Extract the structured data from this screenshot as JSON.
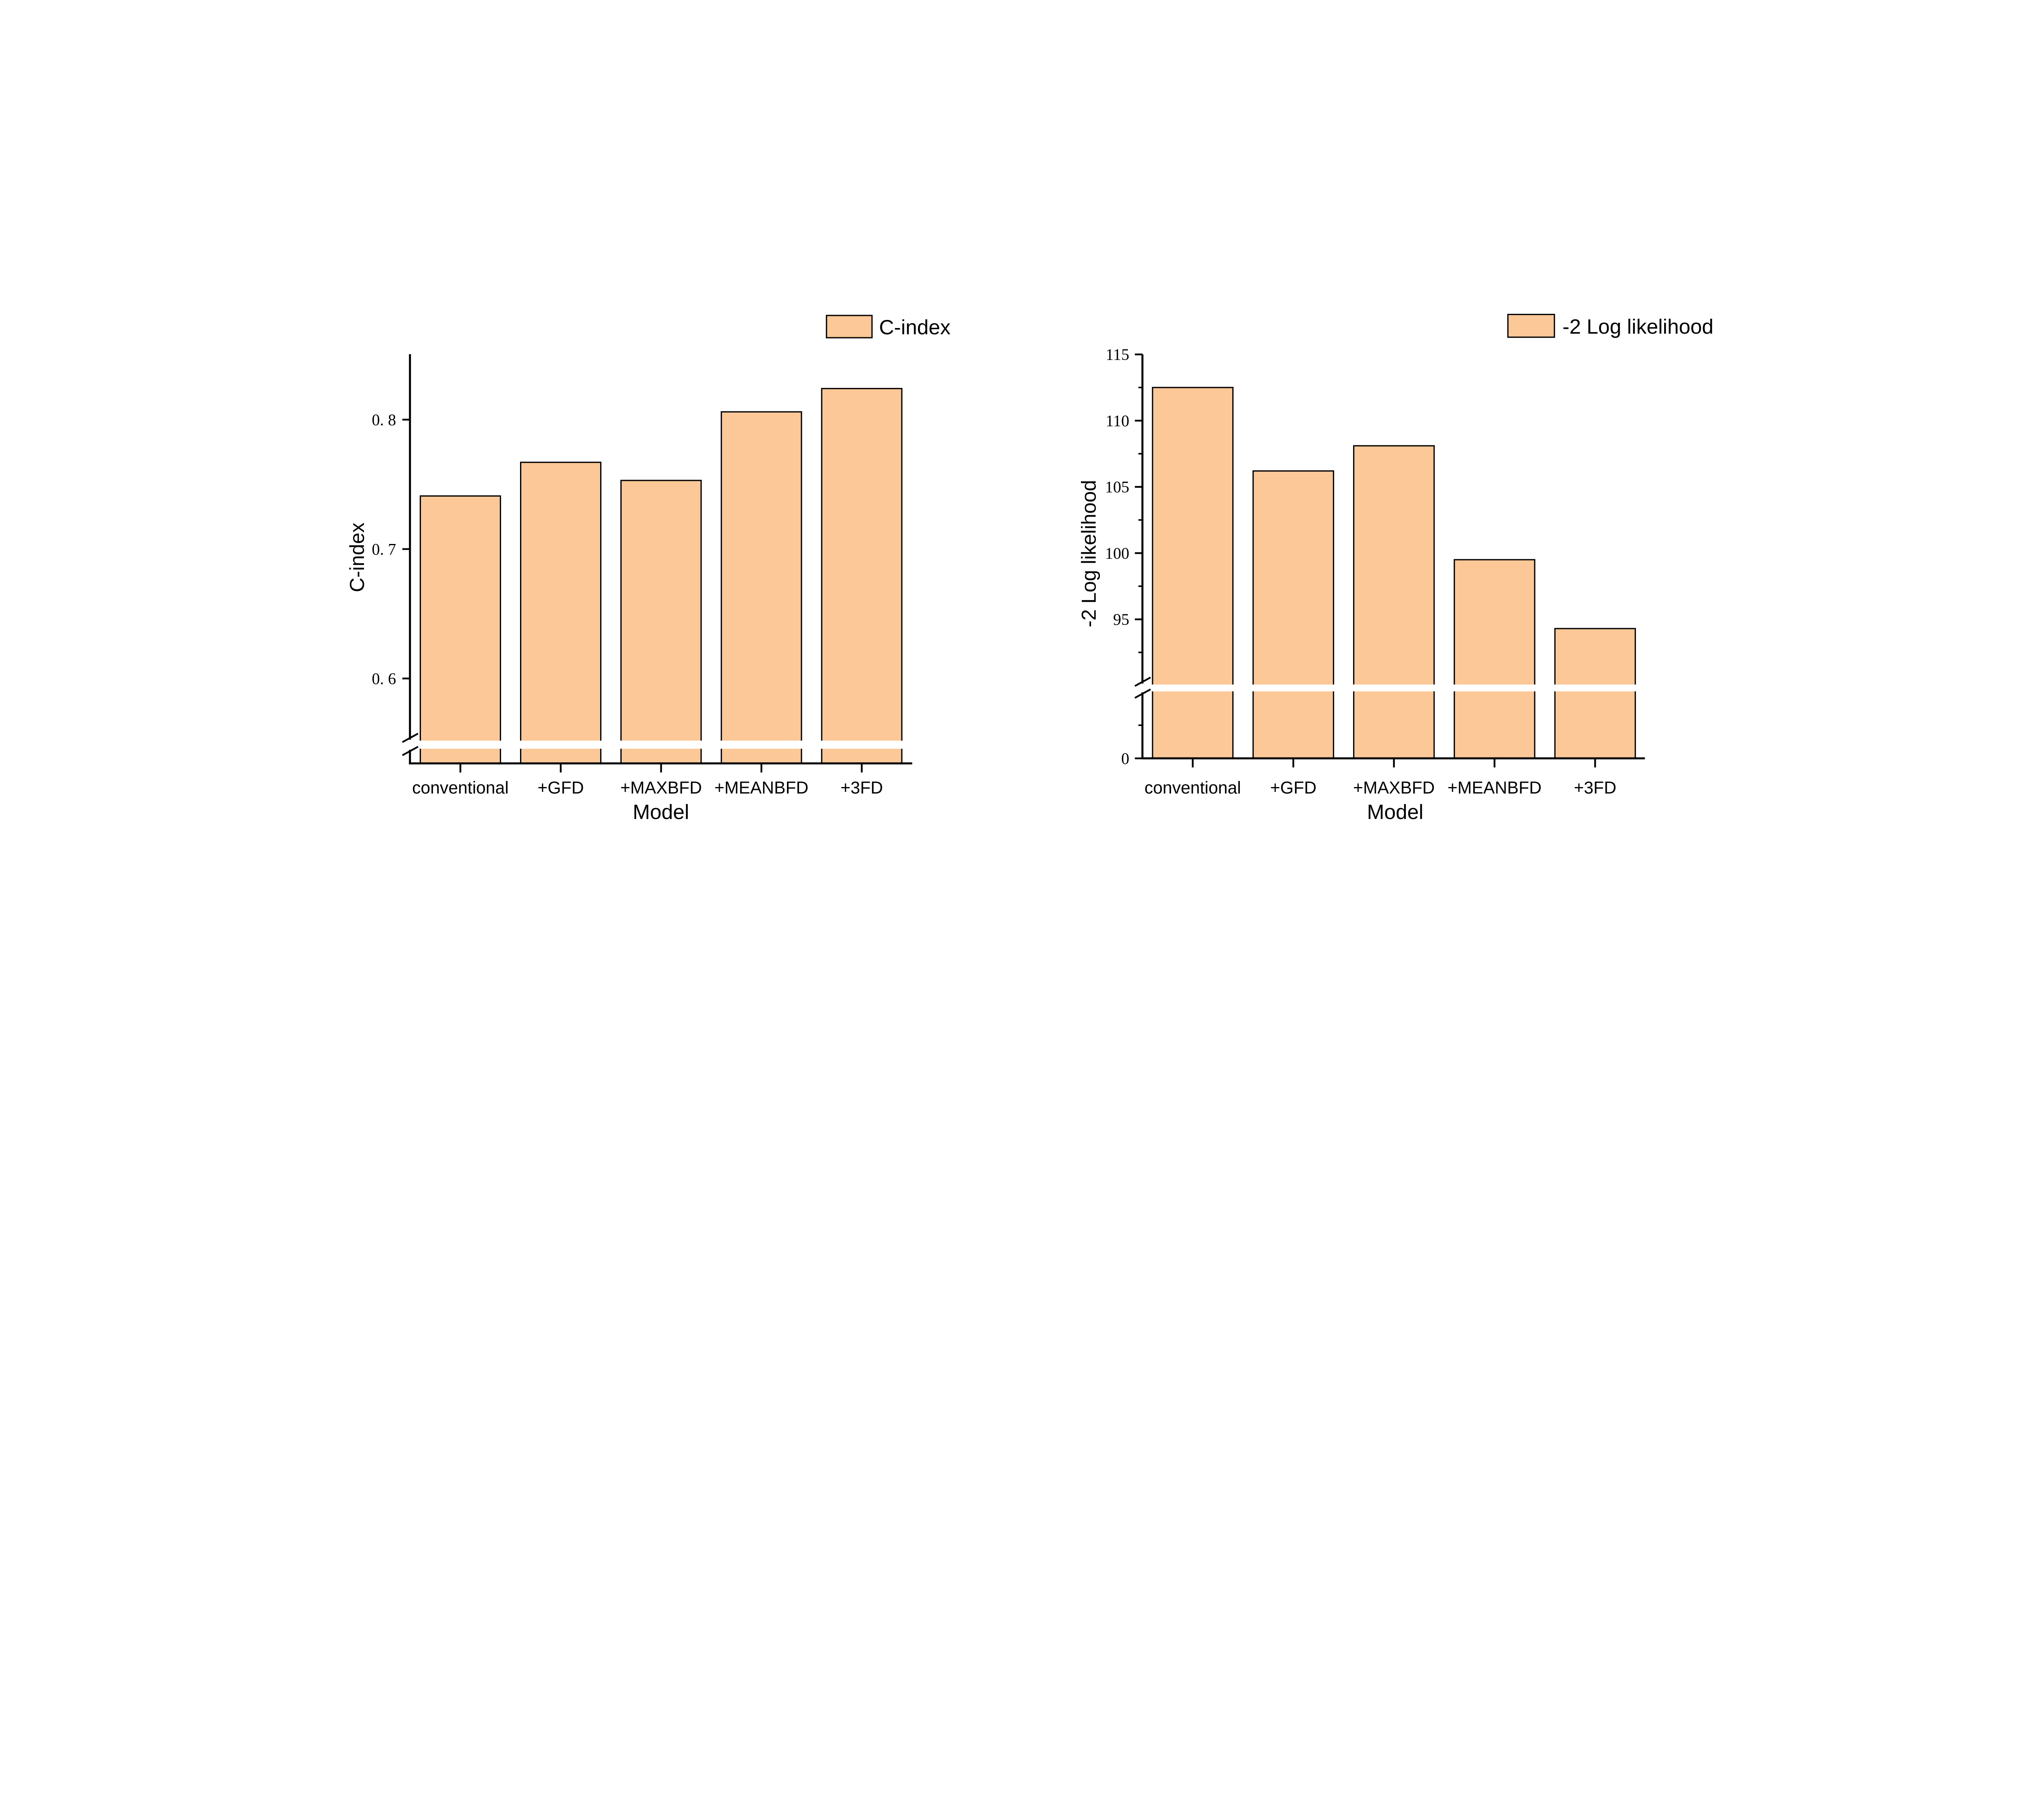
{
  "chart_data": [
    {
      "type": "bar",
      "title": "",
      "xlabel": "Model",
      "ylabel": "C-index",
      "categories": [
        "conventional",
        "+GFD",
        "+MAXBFD",
        "+MEANBFD",
        "+3FD"
      ],
      "series": [
        {
          "name": "C-index",
          "values": [
            0.741,
            0.767,
            0.753,
            0.806,
            0.824
          ]
        }
      ],
      "yticks": [
        0.6,
        0.7,
        0.8
      ],
      "ytick_labels": [
        "0. 6",
        "0. 7",
        "0. 8"
      ],
      "ylim": [
        0.55,
        0.85
      ],
      "axis_break": "below 0.55",
      "legend": "top-right",
      "grid": false,
      "colors": {
        "bar": "#FDC898",
        "edge": "#000000"
      }
    },
    {
      "type": "bar",
      "title": "",
      "xlabel": "Model",
      "ylabel": "-2 Log likelihood",
      "categories": [
        "conventional",
        "+GFD",
        "+MAXBFD",
        "+MEANBFD",
        "+3FD"
      ],
      "series": [
        {
          "name": "-2 Log likelihood",
          "values": [
            112.5,
            106.2,
            108.1,
            99.5,
            94.3
          ]
        }
      ],
      "yticks": [
        0,
        95,
        100,
        105,
        110,
        115
      ],
      "ytick_labels": [
        "0",
        "95",
        "100",
        "105",
        "110",
        "115"
      ],
      "ylim": [
        0,
        115
      ],
      "axis_break": "between 0 and 90",
      "legend": "top-right",
      "grid": false,
      "colors": {
        "bar": "#FDC898",
        "edge": "#000000"
      }
    }
  ]
}
